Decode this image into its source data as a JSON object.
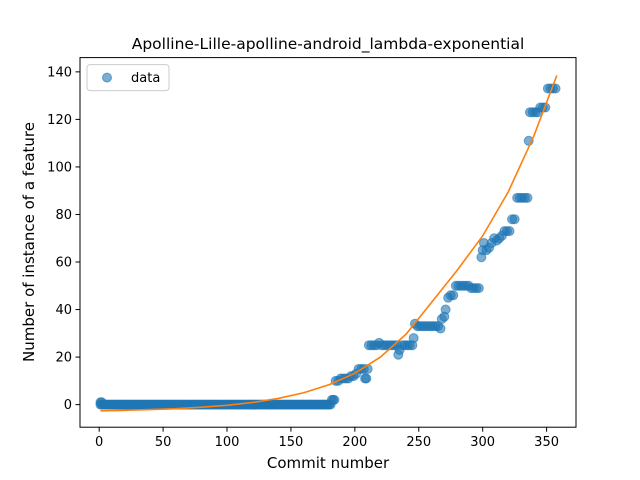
{
  "chart_data": {
    "type": "scatter",
    "title": "Apolline-Lille-apolline-android_lambda-exponential",
    "xlabel": "Commit number",
    "ylabel": "Number of instance of a feature",
    "xlim": [
      -15,
      373
    ],
    "ylim": [
      -9.5,
      146
    ],
    "xticks": [
      0,
      50,
      100,
      150,
      200,
      250,
      300,
      350
    ],
    "yticks": [
      0,
      20,
      40,
      60,
      80,
      100,
      120,
      140
    ],
    "grid": false,
    "legend": {
      "position": "upper-left",
      "entries": [
        "data"
      ]
    },
    "series": [
      {
        "name": "data",
        "kind": "points",
        "color": "#1f77b4",
        "segments": [
          {
            "x_from": 1,
            "x_to": 181,
            "step": 1,
            "y": 0
          }
        ],
        "points": [
          [
            1,
            1
          ],
          [
            2,
            1
          ],
          [
            182,
            2
          ],
          [
            183,
            2
          ],
          [
            184,
            2
          ],
          [
            185,
            10
          ],
          [
            187,
            10
          ],
          [
            189,
            11
          ],
          [
            191,
            11
          ],
          [
            193,
            11
          ],
          [
            195,
            11
          ],
          [
            197,
            12
          ],
          [
            199,
            12
          ],
          [
            201,
            13
          ],
          [
            203,
            15
          ],
          [
            205,
            15
          ],
          [
            207,
            15
          ],
          [
            208,
            11
          ],
          [
            209,
            11
          ],
          [
            210,
            15
          ],
          [
            211,
            25
          ],
          [
            213,
            25
          ],
          [
            215,
            25
          ],
          [
            217,
            25
          ],
          [
            219,
            26
          ],
          [
            221,
            25
          ],
          [
            223,
            25
          ],
          [
            225,
            25
          ],
          [
            227,
            25
          ],
          [
            229,
            25
          ],
          [
            231,
            25
          ],
          [
            233,
            25
          ],
          [
            234,
            21
          ],
          [
            235,
            23
          ],
          [
            237,
            25
          ],
          [
            239,
            25
          ],
          [
            241,
            25
          ],
          [
            243,
            25
          ],
          [
            245,
            25
          ],
          [
            246,
            28
          ],
          [
            247,
            34
          ],
          [
            249,
            33
          ],
          [
            251,
            33
          ],
          [
            253,
            33
          ],
          [
            255,
            33
          ],
          [
            257,
            33
          ],
          [
            259,
            33
          ],
          [
            261,
            33
          ],
          [
            263,
            33
          ],
          [
            265,
            33
          ],
          [
            267,
            32
          ],
          [
            268,
            36
          ],
          [
            270,
            37
          ],
          [
            271,
            40
          ],
          [
            273,
            45
          ],
          [
            275,
            46
          ],
          [
            277,
            46
          ],
          [
            279,
            50
          ],
          [
            281,
            50
          ],
          [
            283,
            50
          ],
          [
            285,
            50
          ],
          [
            287,
            50
          ],
          [
            289,
            50
          ],
          [
            291,
            49
          ],
          [
            293,
            49
          ],
          [
            295,
            49
          ],
          [
            297,
            49
          ],
          [
            299,
            62
          ],
          [
            300,
            65
          ],
          [
            301,
            68
          ],
          [
            303,
            65
          ],
          [
            305,
            66
          ],
          [
            307,
            68
          ],
          [
            309,
            70
          ],
          [
            311,
            69
          ],
          [
            313,
            70
          ],
          [
            315,
            71
          ],
          [
            317,
            73
          ],
          [
            319,
            73
          ],
          [
            321,
            73
          ],
          [
            323,
            78
          ],
          [
            325,
            78
          ],
          [
            327,
            87
          ],
          [
            329,
            87
          ],
          [
            331,
            87
          ],
          [
            333,
            87
          ],
          [
            335,
            87
          ],
          [
            336,
            111
          ],
          [
            337,
            123
          ],
          [
            339,
            123
          ],
          [
            341,
            123
          ],
          [
            343,
            123
          ],
          [
            345,
            125
          ],
          [
            347,
            125
          ],
          [
            349,
            125
          ],
          [
            351,
            133
          ],
          [
            353,
            133
          ],
          [
            355,
            133
          ],
          [
            357,
            133
          ]
        ]
      },
      {
        "name": "",
        "kind": "fit",
        "color": "#ff7f0e",
        "x": [
          1,
          20,
          40,
          60,
          80,
          100,
          120,
          140,
          160,
          180,
          200,
          220,
          240,
          260,
          280,
          300,
          320,
          340,
          358
        ],
        "y": [
          -2.6,
          -2.4,
          -2.1,
          -1.7,
          -1.1,
          -0.3,
          0.9,
          2.6,
          5.0,
          8.4,
          13.2,
          20.0,
          29.6,
          43.0,
          56.5,
          71.0,
          89.5,
          113.0,
          138.5
        ]
      }
    ]
  }
}
